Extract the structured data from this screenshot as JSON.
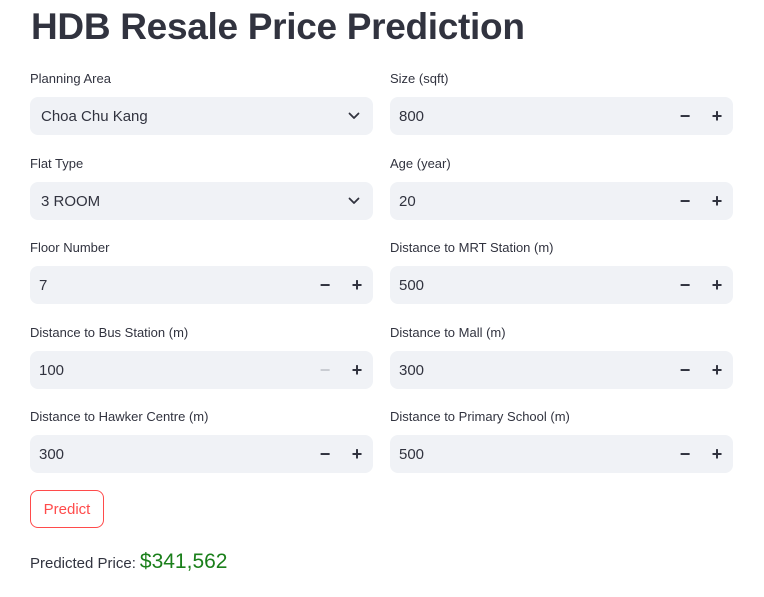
{
  "title": "HDB Resale Price Prediction",
  "fields": {
    "planning_area": {
      "label": "Planning Area",
      "value": "Choa Chu Kang"
    },
    "size": {
      "label": "Size (sqft)",
      "value": "800"
    },
    "flat_type": {
      "label": "Flat Type",
      "value": "3 ROOM"
    },
    "age": {
      "label": "Age (year)",
      "value": "20"
    },
    "floor_number": {
      "label": "Floor Number",
      "value": "7"
    },
    "dist_mrt": {
      "label": "Distance to MRT Station (m)",
      "value": "500"
    },
    "dist_bus": {
      "label": "Distance to Bus Station (m)",
      "value": "100"
    },
    "dist_mall": {
      "label": "Distance to Mall (m)",
      "value": "300"
    },
    "dist_hawker": {
      "label": "Distance to Hawker Centre (m)",
      "value": "300"
    },
    "dist_school": {
      "label": "Distance to Primary School (m)",
      "value": "500"
    }
  },
  "stepper": {
    "minus": "−",
    "plus": "+"
  },
  "predict_label": "Predict",
  "result": {
    "label": "Predicted Price:",
    "value": "$341,562"
  },
  "colors": {
    "accent": "#ff4b4b",
    "result": "#1a7f1a",
    "input_bg": "#f0f2f6",
    "text": "#31333f"
  }
}
